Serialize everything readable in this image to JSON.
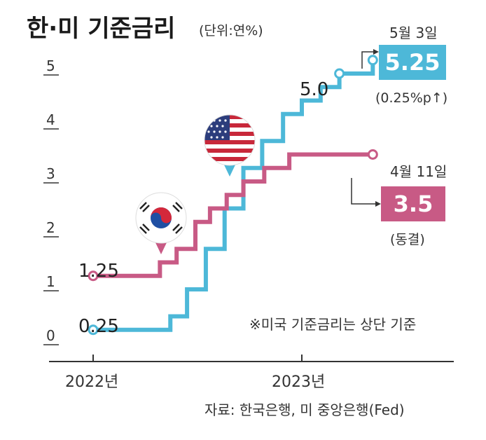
{
  "chart_data": {
    "type": "line",
    "title": "한·미 기준금리",
    "unit": "(단위:연%)",
    "ylim": [
      0,
      5.5
    ],
    "yticks": [
      "0",
      "1",
      "2",
      "3",
      "4",
      "5"
    ],
    "xticks": [
      "2022년",
      "2023년"
    ],
    "series": [
      {
        "name": "us",
        "color": "#4db8d8",
        "step": true,
        "x": [
          0.0,
          0.17,
          0.37,
          0.45,
          0.54,
          0.63,
          0.72,
          0.81,
          0.91,
          1.0,
          1.09,
          1.18,
          1.28,
          1.34
        ],
        "y": [
          0.25,
          0.25,
          0.5,
          1.0,
          1.75,
          2.5,
          3.25,
          3.75,
          4.25,
          4.5,
          4.75,
          5.0,
          5.0,
          5.25
        ]
      },
      {
        "name": "korea",
        "color": "#c85a85",
        "step": true,
        "x": [
          0.0,
          0.22,
          0.32,
          0.4,
          0.49,
          0.56,
          0.64,
          0.72,
          0.82,
          0.94,
          1.14,
          1.34
        ],
        "y": [
          1.25,
          1.25,
          1.5,
          1.75,
          2.25,
          2.5,
          2.75,
          3.0,
          3.25,
          3.5,
          3.5,
          3.5
        ]
      }
    ],
    "annotations": {
      "us_start": "0.25",
      "korea_start": "1.25",
      "us_5": "5.0",
      "us_date": "5월 3일",
      "us_value": "5.25",
      "us_change": "(0.25%p↑)",
      "korea_date": "4월 11일",
      "korea_value": "3.5",
      "korea_change": "(동결)"
    },
    "note": "※미국 기준금리는 상단 기준",
    "source": "자료: 한국은행, 미 중앙은행(Fed)"
  },
  "colors": {
    "us": "#4db8d8",
    "korea": "#c85a85",
    "us_box": "#4db8d8",
    "korea_box": "#c85a85"
  },
  "icons": [
    "us-flag-pin-icon",
    "korea-flag-pin-icon"
  ]
}
